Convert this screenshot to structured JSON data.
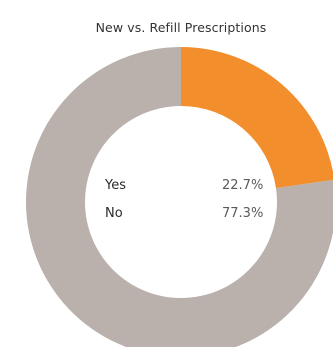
{
  "chart_data": {
    "type": "pie",
    "title": "New vs. Refill Prescriptions",
    "categories": [
      "Yes",
      "No"
    ],
    "values": [
      22.7,
      77.3
    ],
    "value_labels": [
      "22.7%",
      "77.3%"
    ],
    "colors": [
      "#f28e2b",
      "#bab0ac"
    ],
    "donut": true,
    "legend": "center"
  }
}
